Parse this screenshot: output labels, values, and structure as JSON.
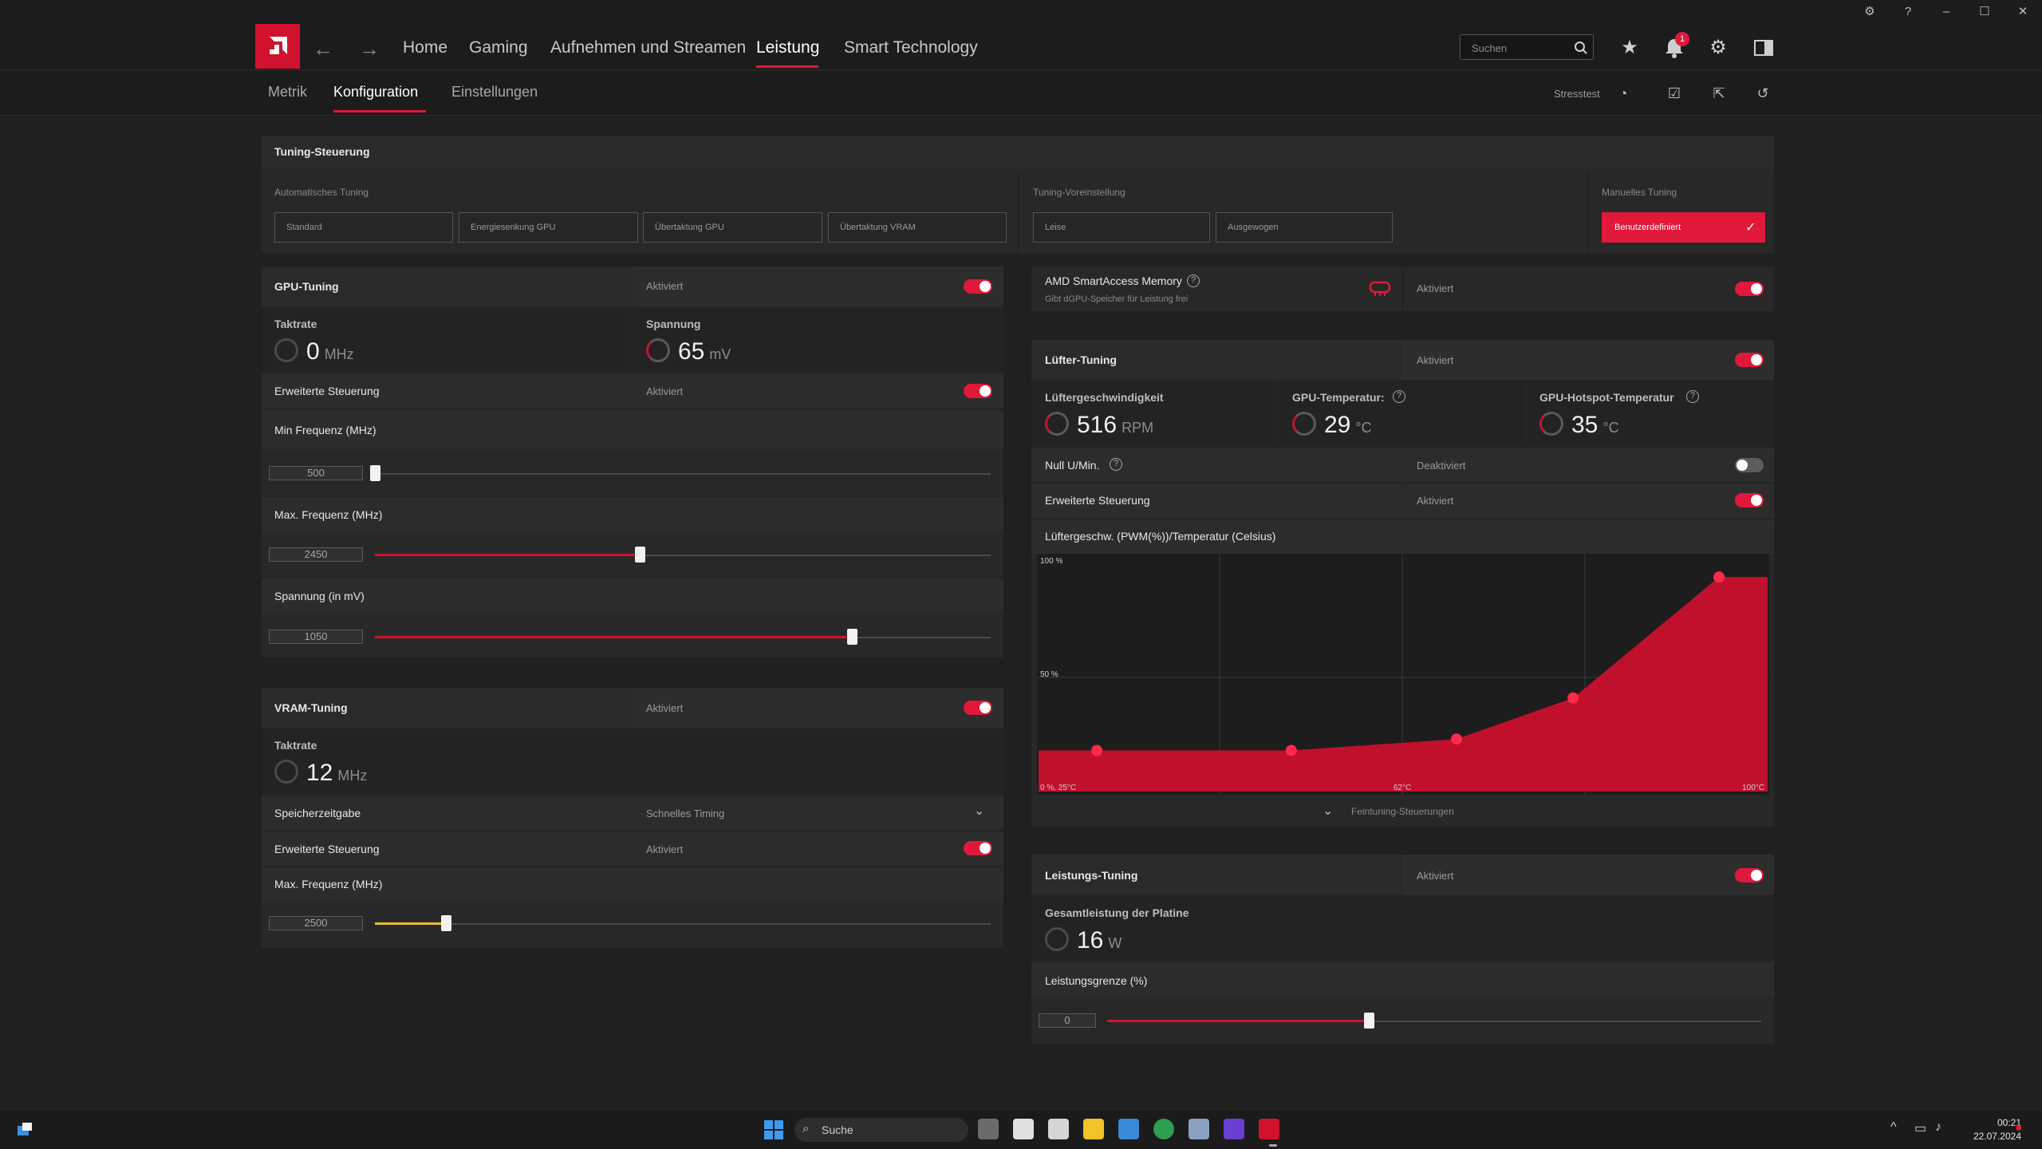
{
  "window": {
    "controls": [
      "⚙",
      "?",
      "–",
      "☐",
      "✕"
    ]
  },
  "nav": {
    "items": [
      "Home",
      "Gaming",
      "Aufnehmen und Streamen",
      "Leistung",
      "Smart Technology"
    ],
    "search_placeholder": "Suchen",
    "notif_count": "1"
  },
  "subnav": {
    "items": [
      "Metrik",
      "Konfiguration",
      "Einstellungen"
    ],
    "stresstest": "Stresstest"
  },
  "tuning": {
    "title": "Tuning-Steuerung",
    "auto_label": "Automatisches Tuning",
    "auto": [
      "Standard",
      "Energiesenkung GPU",
      "Übertaktung GPU",
      "Übertaktung VRAM"
    ],
    "preset_label": "Tuning-Voreinstellung",
    "presets": [
      "Leise",
      "Ausgewogen"
    ],
    "manual_label": "Manuelles Tuning",
    "manual": "Benutzerdefiniert"
  },
  "gpu": {
    "title": "GPU-Tuning",
    "status": "Aktiviert",
    "clock_label": "Taktrate",
    "clock": "0",
    "clock_unit": "MHz",
    "volt_label": "Spannung",
    "volt": "65",
    "volt_unit": "mV",
    "adv": "Erweiterte Steuerung",
    "adv_status": "Aktiviert",
    "min_label": "Min Frequenz (MHz)",
    "min": "500",
    "min_frac": 0,
    "max_label": "Max. Frequenz (MHz)",
    "max": "2450",
    "max_frac": 0.43,
    "v_label": "Spannung (in mV)",
    "v": "1050",
    "v_frac": 0.775
  },
  "vram": {
    "title": "VRAM-Tuning",
    "status": "Aktiviert",
    "clock_label": "Taktrate",
    "clock": "12",
    "clock_unit": "MHz",
    "mem_label": "Speicherzeitgabe",
    "mem_value": "Schnelles Timing",
    "adv": "Erweiterte Steuerung",
    "adv_status": "Aktiviert",
    "max_label": "Max. Frequenz (MHz)",
    "max": "2500",
    "max_frac": 0.115
  },
  "sam": {
    "title": "AMD SmartAccess Memory",
    "sub": "Gibt dGPU-Speicher für Leistung frei",
    "status": "Aktiviert"
  },
  "fan": {
    "title": "Lüfter-Tuning",
    "status": "Aktiviert",
    "speed_label": "Lüftergeschwindigkeit",
    "speed": "516",
    "speed_unit": "RPM",
    "temp_label": "GPU-Temperatur:",
    "temp": "29",
    "temp_unit": "°C",
    "hot_label": "GPU-Hotspot-Temperatur",
    "hot": "35",
    "hot_unit": "°C",
    "zero_label": "Null U/Min.",
    "zero_status": "Deaktiviert",
    "adv": "Erweiterte Steuerung",
    "adv_status": "Aktiviert",
    "curve_label": "Lüftergeschw. (PWM(%))/Temperatur (Celsius)",
    "fine": "Feintuning-Steuerungen"
  },
  "chart_data": {
    "type": "area",
    "xlabel": "",
    "ylabel": "",
    "y_ticks": [
      "100 %",
      "50 %"
    ],
    "x_ticks": [
      "0 %, 25°C",
      "62°C",
      "100°C"
    ],
    "points": [
      {
        "x": 31,
        "y": 18
      },
      {
        "x": 51,
        "y": 18
      },
      {
        "x": 68,
        "y": 23
      },
      {
        "x": 80,
        "y": 41
      },
      {
        "x": 95,
        "y": 94
      }
    ],
    "x": [
      25,
      100
    ],
    "ylim": [
      0,
      100
    ],
    "colors": {
      "fill": "#c0102c",
      "point": "#ff2a4a"
    }
  },
  "power": {
    "title": "Leistungs-Tuning",
    "status": "Aktiviert",
    "board_label": "Gesamtleistung der Platine",
    "board": "16",
    "board_unit": "W",
    "limit_label": "Leistungsgrenze (%)",
    "limit": "0",
    "limit_frac": 0.4
  },
  "taskbar": {
    "search": "Suche",
    "time": "00:21",
    "date": "22.07.2024"
  }
}
